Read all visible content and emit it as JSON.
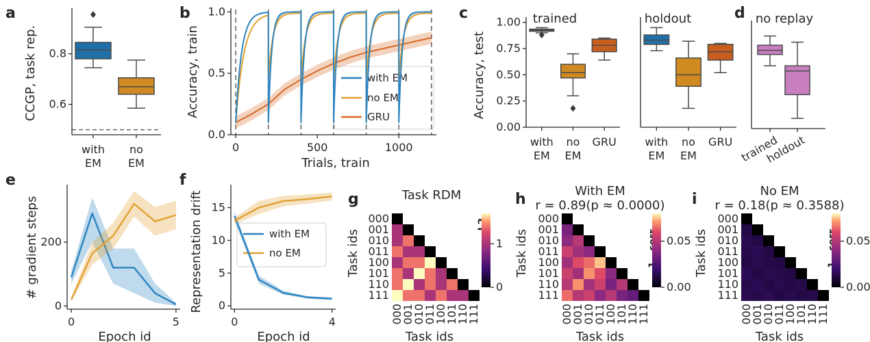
{
  "panels": {
    "a": "a",
    "b": "b",
    "c": "c",
    "d": "d",
    "e": "e",
    "f": "f",
    "g": "g",
    "h": "h",
    "i": "i"
  },
  "colors": {
    "with_em": "#1f6fa8",
    "no_em": "#d08a22",
    "gru": "#c95f1f",
    "no_replay": "#c77fc0",
    "line_with_em": "#2b83c0",
    "line_no_em": "#e0a030",
    "line_gru": "#d66a28"
  },
  "chart_data": [
    {
      "id": "a",
      "type": "box",
      "ylabel": "CCGP, task rep.",
      "yticks": [
        0.6,
        0.8
      ],
      "ylim": [
        0.48,
        0.98
      ],
      "chance_line": 0.5,
      "categories": [
        "with\nEM",
        "no\nEM"
      ],
      "boxes": [
        {
          "name": "with EM",
          "whislo": 0.745,
          "q1": 0.78,
          "med": 0.815,
          "q3": 0.845,
          "whishi": 0.905,
          "fliers": [
            0.955
          ]
        },
        {
          "name": "no EM",
          "whislo": 0.585,
          "q1": 0.64,
          "med": 0.67,
          "q3": 0.705,
          "whishi": 0.775,
          "fliers": []
        }
      ]
    },
    {
      "id": "b",
      "type": "line",
      "xlabel": "Trials, train",
      "ylabel": "Accuracy, train",
      "xticks": [
        0,
        500,
        1000
      ],
      "yticks": [
        0.0,
        0.5,
        1.0
      ],
      "xlim": [
        -30,
        1230
      ],
      "ylim": [
        0,
        1.03
      ],
      "task_boundaries": [
        0,
        200,
        400,
        600,
        800,
        1000,
        1200
      ],
      "series": [
        {
          "name": "with EM",
          "task_curve": {
            "start": 0.1,
            "end": 1.0,
            "tau": 20
          }
        },
        {
          "name": "no EM",
          "task_curve": {
            "start": 0.45,
            "end": 0.99,
            "tau": 28
          }
        },
        {
          "name": "GRU",
          "x": [
            0,
            100,
            200,
            300,
            400,
            500,
            600,
            700,
            800,
            900,
            1000,
            1100,
            1200
          ],
          "values": [
            0.1,
            0.17,
            0.25,
            0.37,
            0.45,
            0.52,
            0.58,
            0.63,
            0.67,
            0.7,
            0.73,
            0.76,
            0.79
          ]
        }
      ]
    },
    {
      "id": "c",
      "type": "box",
      "ylabel": "Accuracy, test",
      "yticks": [
        "0.00",
        "0.25",
        "0.50",
        "0.75",
        "1.00"
      ],
      "ylim": [
        0,
        1.05
      ],
      "groups": [
        {
          "title": "trained",
          "categories": [
            "with\nEM",
            "no\nEM",
            "GRU"
          ],
          "boxes": [
            {
              "name": "with EM",
              "whislo": 0.9,
              "q1": 0.915,
              "med": 0.925,
              "q3": 0.935,
              "whishi": 0.95,
              "fliers": [
                0.88
              ]
            },
            {
              "name": "no EM",
              "whislo": 0.3,
              "q1": 0.47,
              "med": 0.52,
              "q3": 0.6,
              "whishi": 0.7,
              "fliers": [
                0.18
              ]
            },
            {
              "name": "GRU",
              "whislo": 0.64,
              "q1": 0.72,
              "med": 0.78,
              "q3": 0.84,
              "whishi": 0.85,
              "fliers": []
            }
          ]
        },
        {
          "title": "holdout",
          "categories": [
            "with\nEM",
            "no\nEM",
            "GRU"
          ],
          "boxes": [
            {
              "name": "with EM",
              "whislo": 0.73,
              "q1": 0.79,
              "med": 0.83,
              "q3": 0.88,
              "whishi": 0.95,
              "fliers": []
            },
            {
              "name": "no EM",
              "whislo": 0.18,
              "q1": 0.39,
              "med": 0.5,
              "q3": 0.66,
              "whishi": 0.82,
              "fliers": []
            },
            {
              "name": "GRU",
              "whislo": 0.52,
              "q1": 0.64,
              "med": 0.72,
              "q3": 0.79,
              "whishi": 0.8,
              "fliers": []
            }
          ]
        }
      ]
    },
    {
      "id": "d",
      "type": "box",
      "title": "no replay",
      "categories": [
        "trained",
        "holdout"
      ],
      "ylim": [
        0,
        1.05
      ],
      "boxes": [
        {
          "name": "trained",
          "whislo": 0.61,
          "q1": 0.72,
          "med": 0.76,
          "q3": 0.81,
          "whishi": 0.9,
          "fliers": []
        },
        {
          "name": "holdout",
          "whislo": 0.1,
          "q1": 0.33,
          "med": 0.56,
          "q3": 0.61,
          "whishi": 0.84,
          "fliers": []
        }
      ]
    },
    {
      "id": "e",
      "type": "line",
      "xlabel": "Epoch id",
      "ylabel": "# gradient steps",
      "xticks": [
        0,
        5
      ],
      "yticks": [
        0,
        200
      ],
      "xlim": [
        -0.2,
        5.2
      ],
      "ylim": [
        -10,
        380
      ],
      "x": [
        0,
        1,
        2,
        3,
        4,
        5
      ],
      "series": [
        {
          "name": "with EM",
          "values": [
            90,
            290,
            120,
            120,
            40,
            5
          ],
          "lower": [
            70,
            200,
            70,
            40,
            10,
            0
          ],
          "upper": [
            110,
            340,
            180,
            180,
            70,
            10
          ]
        },
        {
          "name": "no EM",
          "values": [
            20,
            165,
            220,
            320,
            265,
            285
          ],
          "lower": [
            15,
            130,
            180,
            280,
            220,
            240
          ],
          "upper": [
            25,
            200,
            260,
            360,
            310,
            330
          ]
        }
      ]
    },
    {
      "id": "f",
      "type": "line",
      "xlabel": "Epoch id",
      "ylabel": "Representation drift",
      "xticks": [
        0,
        4
      ],
      "yticks": [
        0,
        5,
        10,
        15
      ],
      "xlim": [
        -0.15,
        4.15
      ],
      "ylim": [
        -0.5,
        18.5
      ],
      "x": [
        0,
        1,
        2,
        3,
        4
      ],
      "legend": [
        "with EM",
        "no EM"
      ],
      "series": [
        {
          "name": "with EM",
          "values": [
            13.7,
            4.0,
            2.0,
            1.3,
            1.1
          ],
          "lower": [
            13.0,
            3.4,
            1.7,
            1.1,
            0.9
          ],
          "upper": [
            14.4,
            4.6,
            2.3,
            1.5,
            1.3
          ]
        },
        {
          "name": "no EM",
          "values": [
            13.0,
            15.0,
            16.0,
            16.3,
            16.7
          ],
          "lower": [
            12.5,
            14.0,
            15.2,
            15.6,
            16.1
          ],
          "upper": [
            13.5,
            16.0,
            16.8,
            17.0,
            17.3
          ]
        }
      ]
    },
    {
      "id": "g",
      "type": "heatmap",
      "title": "Task RDM",
      "xlabel": "Task ids",
      "ylabel": "Task ids",
      "labels": [
        "000",
        "001",
        "010",
        "011",
        "100",
        "101",
        "110",
        "111"
      ],
      "colorbar_label": "L2",
      "colorbar_ticks": [
        0,
        1
      ],
      "vmin": 0,
      "vmax": 1.7,
      "matrix": [
        [
          0,
          0,
          0,
          0,
          0,
          0,
          0,
          0
        ],
        [
          1.0,
          0,
          0,
          0,
          0,
          0,
          0,
          0
        ],
        [
          1.0,
          1.4,
          0,
          0,
          0,
          0,
          0,
          0
        ],
        [
          1.4,
          1.0,
          1.0,
          0,
          0,
          0,
          0,
          0
        ],
        [
          1.0,
          1.4,
          1.4,
          1.7,
          0,
          0,
          0,
          0
        ],
        [
          1.4,
          1.0,
          1.7,
          1.4,
          1.0,
          0,
          0,
          0
        ],
        [
          1.4,
          1.7,
          1.0,
          1.4,
          1.0,
          1.4,
          0,
          0
        ],
        [
          1.7,
          1.4,
          1.4,
          1.0,
          1.4,
          1.0,
          1.0,
          0
        ]
      ]
    },
    {
      "id": "h",
      "type": "heatmap",
      "title": "With EM",
      "subtitle": "r = 0.89(p ≈ 0.0000)",
      "xlabel": "Task ids",
      "ylabel": "Task ids",
      "labels": [
        "000",
        "001",
        "010",
        "011",
        "100",
        "101",
        "110",
        "111"
      ],
      "colorbar_label": "1 - corr.",
      "colorbar_ticks": [
        "0.00",
        "0.05"
      ],
      "vmin": 0,
      "vmax": 0.08,
      "matrix": [
        [
          0,
          0,
          0,
          0,
          0,
          0,
          0,
          0
        ],
        [
          0.035,
          0,
          0,
          0,
          0,
          0,
          0,
          0
        ],
        [
          0.04,
          0.05,
          0,
          0,
          0,
          0,
          0,
          0
        ],
        [
          0.055,
          0.045,
          0.04,
          0,
          0,
          0,
          0,
          0
        ],
        [
          0.045,
          0.06,
          0.065,
          0.075,
          0,
          0,
          0,
          0
        ],
        [
          0.055,
          0.045,
          0.07,
          0.06,
          0.04,
          0,
          0,
          0
        ],
        [
          0.05,
          0.07,
          0.045,
          0.055,
          0.035,
          0.05,
          0,
          0
        ],
        [
          0.065,
          0.05,
          0.055,
          0.04,
          0.05,
          0.035,
          0.03,
          0
        ]
      ]
    },
    {
      "id": "i",
      "type": "heatmap",
      "title": "No EM",
      "subtitle": "r = 0.18(p ≈ 0.3588)",
      "xlabel": "Task ids",
      "ylabel": "Task ids",
      "labels": [
        "000",
        "001",
        "010",
        "011",
        "100",
        "101",
        "110",
        "111"
      ],
      "colorbar_label": "1 - corr.",
      "colorbar_ticks": [
        "0.00",
        "0.05"
      ],
      "vmin": 0,
      "vmax": 0.08,
      "matrix": [
        [
          0,
          0,
          0,
          0,
          0,
          0,
          0,
          0
        ],
        [
          0.012,
          0,
          0,
          0,
          0,
          0,
          0,
          0
        ],
        [
          0.014,
          0.012,
          0,
          0,
          0,
          0,
          0,
          0
        ],
        [
          0.013,
          0.015,
          0.012,
          0,
          0,
          0,
          0,
          0
        ],
        [
          0.012,
          0.014,
          0.013,
          0.012,
          0,
          0,
          0,
          0
        ],
        [
          0.015,
          0.012,
          0.014,
          0.013,
          0.012,
          0,
          0,
          0
        ],
        [
          0.013,
          0.015,
          0.012,
          0.014,
          0.012,
          0.013,
          0,
          0
        ],
        [
          0.014,
          0.013,
          0.015,
          0.012,
          0.014,
          0.012,
          0.013,
          0
        ]
      ]
    }
  ]
}
